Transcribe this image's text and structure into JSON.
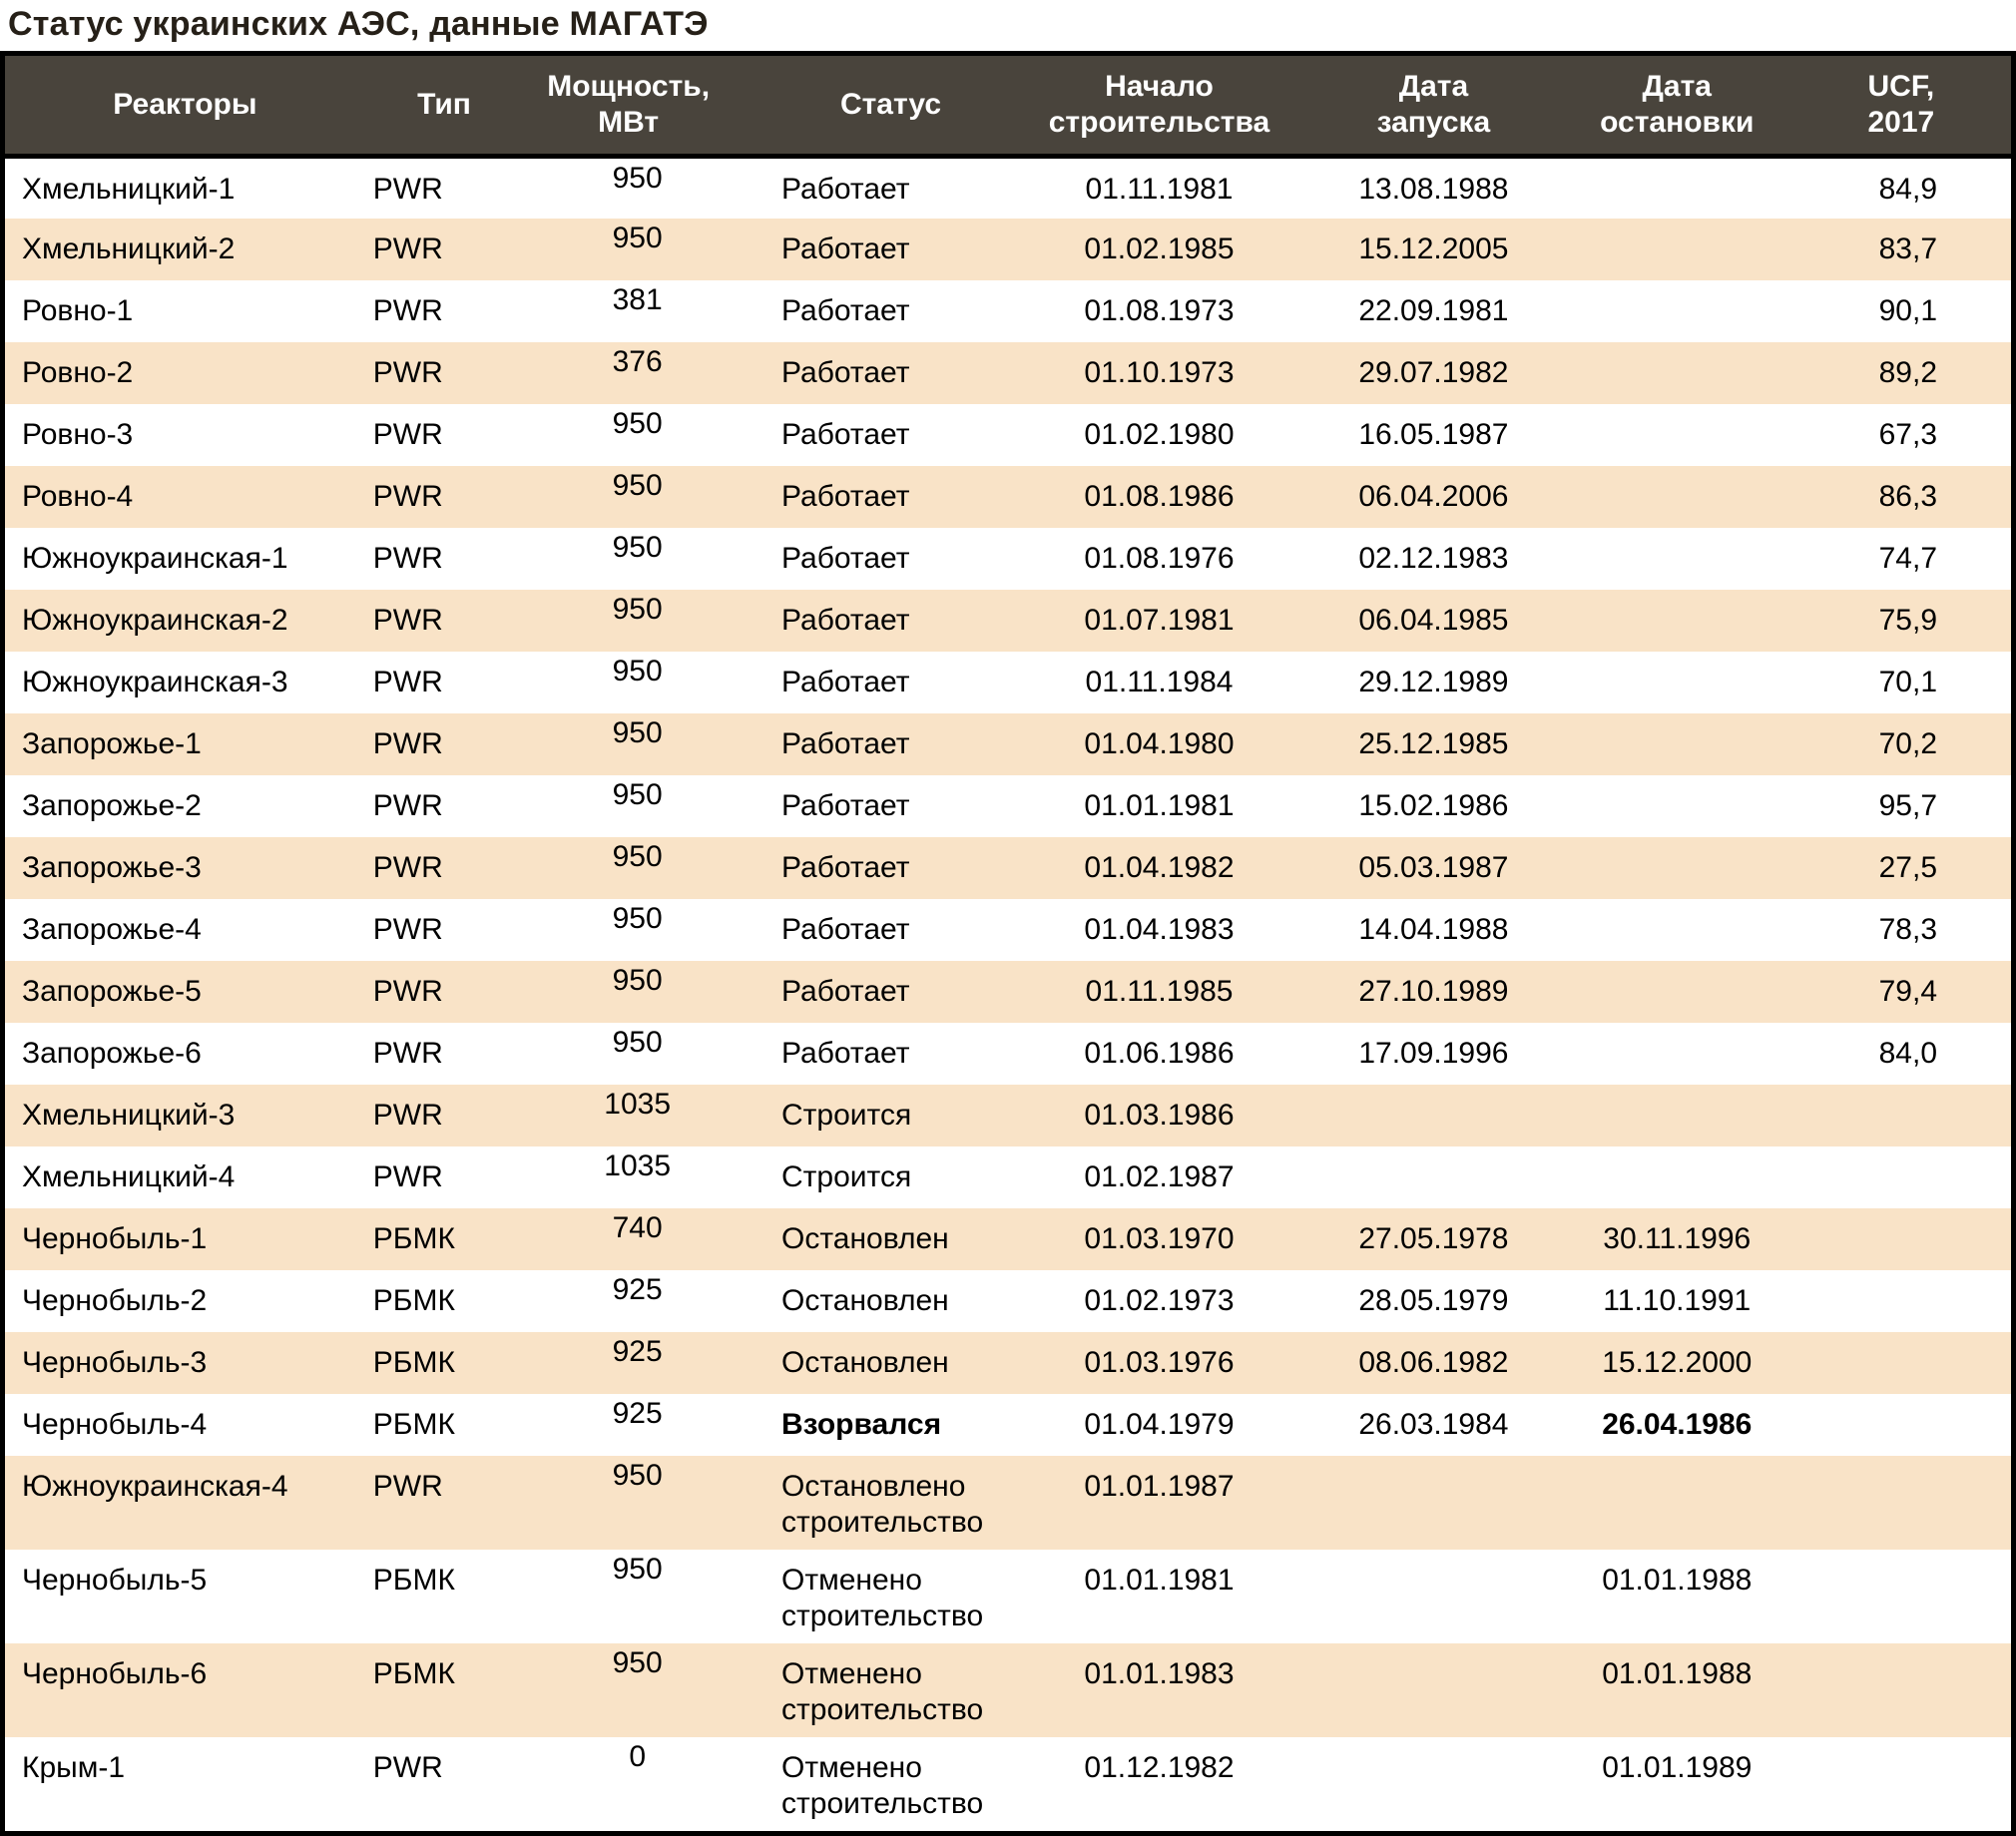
{
  "page_title": "Статус украинских АЭС, данные МАГАТЭ",
  "colors": {
    "header_bg": "#49443c",
    "header_text": "#ffffff",
    "row_bg": "#ffffff",
    "row_alt_bg": "#f9e3c7",
    "border": "#000000",
    "text": "#000000"
  },
  "table": {
    "column_keys": [
      "name",
      "type",
      "power",
      "status",
      "start",
      "launch",
      "stop",
      "ucf"
    ],
    "headers": [
      {
        "key": "name",
        "label": "Реакторы"
      },
      {
        "key": "type",
        "label": "Тип"
      },
      {
        "key": "power",
        "label": "Мощность,\nМВт"
      },
      {
        "key": "status",
        "label": "Статус"
      },
      {
        "key": "start",
        "label": "Начало\nстроительства"
      },
      {
        "key": "launch",
        "label": "Дата\nзапуска"
      },
      {
        "key": "stop",
        "label": "Дата\nостановки"
      },
      {
        "key": "ucf",
        "label": "UCF,\n2017"
      }
    ],
    "rows": [
      {
        "name": "Хмельницкий-1",
        "type": "PWR",
        "power": "950",
        "status": "Работает",
        "start": "01.11.1981",
        "launch": "13.08.1988",
        "stop": "",
        "ucf": "84,9",
        "bold": []
      },
      {
        "name": "Хмельницкий-2",
        "type": "PWR",
        "power": "950",
        "status": "Работает",
        "start": "01.02.1985",
        "launch": "15.12.2005",
        "stop": "",
        "ucf": "83,7",
        "bold": []
      },
      {
        "name": "Ровно-1",
        "type": "PWR",
        "power": "381",
        "status": "Работает",
        "start": "01.08.1973",
        "launch": "22.09.1981",
        "stop": "",
        "ucf": "90,1",
        "bold": []
      },
      {
        "name": "Ровно-2",
        "type": "PWR",
        "power": "376",
        "status": "Работает",
        "start": "01.10.1973",
        "launch": "29.07.1982",
        "stop": "",
        "ucf": "89,2",
        "bold": []
      },
      {
        "name": "Ровно-3",
        "type": "PWR",
        "power": "950",
        "status": "Работает",
        "start": "01.02.1980",
        "launch": "16.05.1987",
        "stop": "",
        "ucf": "67,3",
        "bold": []
      },
      {
        "name": "Ровно-4",
        "type": "PWR",
        "power": "950",
        "status": "Работает",
        "start": "01.08.1986",
        "launch": "06.04.2006",
        "stop": "",
        "ucf": "86,3",
        "bold": []
      },
      {
        "name": "Южноукраинская-1",
        "type": "PWR",
        "power": "950",
        "status": "Работает",
        "start": "01.08.1976",
        "launch": "02.12.1983",
        "stop": "",
        "ucf": "74,7",
        "bold": []
      },
      {
        "name": "Южноукраинская-2",
        "type": "PWR",
        "power": "950",
        "status": "Работает",
        "start": "01.07.1981",
        "launch": "06.04.1985",
        "stop": "",
        "ucf": "75,9",
        "bold": []
      },
      {
        "name": "Южноукраинская-3",
        "type": "PWR",
        "power": "950",
        "status": "Работает",
        "start": "01.11.1984",
        "launch": "29.12.1989",
        "stop": "",
        "ucf": "70,1",
        "bold": []
      },
      {
        "name": "Запорожье-1",
        "type": "PWR",
        "power": "950",
        "status": "Работает",
        "start": "01.04.1980",
        "launch": "25.12.1985",
        "stop": "",
        "ucf": "70,2",
        "bold": []
      },
      {
        "name": "Запорожье-2",
        "type": "PWR",
        "power": "950",
        "status": "Работает",
        "start": "01.01.1981",
        "launch": "15.02.1986",
        "stop": "",
        "ucf": "95,7",
        "bold": []
      },
      {
        "name": "Запорожье-3",
        "type": "PWR",
        "power": "950",
        "status": "Работает",
        "start": "01.04.1982",
        "launch": "05.03.1987",
        "stop": "",
        "ucf": "27,5",
        "bold": []
      },
      {
        "name": "Запорожье-4",
        "type": "PWR",
        "power": "950",
        "status": "Работает",
        "start": "01.04.1983",
        "launch": "14.04.1988",
        "stop": "",
        "ucf": "78,3",
        "bold": []
      },
      {
        "name": "Запорожье-5",
        "type": "PWR",
        "power": "950",
        "status": "Работает",
        "start": "01.11.1985",
        "launch": "27.10.1989",
        "stop": "",
        "ucf": "79,4",
        "bold": []
      },
      {
        "name": "Запорожье-6",
        "type": "PWR",
        "power": "950",
        "status": "Работает",
        "start": "01.06.1986",
        "launch": "17.09.1996",
        "stop": "",
        "ucf": "84,0",
        "bold": []
      },
      {
        "name": "Хмельницкий-3",
        "type": "PWR",
        "power": "1035",
        "status": "Строится",
        "start": "01.03.1986",
        "launch": "",
        "stop": "",
        "ucf": "",
        "bold": []
      },
      {
        "name": "Хмельницкий-4",
        "type": "PWR",
        "power": "1035",
        "status": "Строится",
        "start": "01.02.1987",
        "launch": "",
        "stop": "",
        "ucf": "",
        "bold": []
      },
      {
        "name": "Чернобыль-1",
        "type": "РБМК",
        "power": "740",
        "status": "Остановлен",
        "start": "01.03.1970",
        "launch": "27.05.1978",
        "stop": "30.11.1996",
        "ucf": "",
        "bold": []
      },
      {
        "name": "Чернобыль-2",
        "type": "РБМК",
        "power": "925",
        "status": "Остановлен",
        "start": "01.02.1973",
        "launch": "28.05.1979",
        "stop": "11.10.1991",
        "ucf": "",
        "bold": []
      },
      {
        "name": "Чернобыль-3",
        "type": "РБМК",
        "power": "925",
        "status": "Остановлен",
        "start": "01.03.1976",
        "launch": "08.06.1982",
        "stop": "15.12.2000",
        "ucf": "",
        "bold": []
      },
      {
        "name": "Чернобыль-4",
        "type": "РБМК",
        "power": "925",
        "status": "Взорвался",
        "start": "01.04.1979",
        "launch": "26.03.1984",
        "stop": "26.04.1986",
        "ucf": "",
        "bold": [
          "status",
          "stop"
        ]
      },
      {
        "name": "Южноукраинская-4",
        "type": "PWR",
        "power": "950",
        "status": "Остановлено\nстроительство",
        "start": "01.01.1987",
        "launch": "",
        "stop": "",
        "ucf": "",
        "bold": []
      },
      {
        "name": "Чернобыль-5",
        "type": "РБМК",
        "power": "950",
        "status": "Отменено\nстроительство",
        "start": "01.01.1981",
        "launch": "",
        "stop": "01.01.1988",
        "ucf": "",
        "bold": []
      },
      {
        "name": "Чернобыль-6",
        "type": "РБМК",
        "power": "950",
        "status": "Отменено\nстроительство",
        "start": "01.01.1983",
        "launch": "",
        "stop": "01.01.1988",
        "ucf": "",
        "bold": []
      },
      {
        "name": "Крым-1",
        "type": "PWR",
        "power": "0",
        "status": "Отменено\nстроительство",
        "start": "01.12.1982",
        "launch": "",
        "stop": "01.01.1989",
        "ucf": "",
        "bold": []
      }
    ]
  },
  "chart_data": {
    "type": "table",
    "title": "Статус украинских АЭС, данные МАГАТЭ",
    "columns": [
      "Реакторы",
      "Тип",
      "Мощность, МВт",
      "Статус",
      "Начало строительства",
      "Дата запуска",
      "Дата остановки",
      "UCF, 2017"
    ],
    "rows": [
      [
        "Хмельницкий-1",
        "PWR",
        950,
        "Работает",
        "01.11.1981",
        "13.08.1988",
        null,
        84.9
      ],
      [
        "Хмельницкий-2",
        "PWR",
        950,
        "Работает",
        "01.02.1985",
        "15.12.2005",
        null,
        83.7
      ],
      [
        "Ровно-1",
        "PWR",
        381,
        "Работает",
        "01.08.1973",
        "22.09.1981",
        null,
        90.1
      ],
      [
        "Ровно-2",
        "PWR",
        376,
        "Работает",
        "01.10.1973",
        "29.07.1982",
        null,
        89.2
      ],
      [
        "Ровно-3",
        "PWR",
        950,
        "Работает",
        "01.02.1980",
        "16.05.1987",
        null,
        67.3
      ],
      [
        "Ровно-4",
        "PWR",
        950,
        "Работает",
        "01.08.1986",
        "06.04.2006",
        null,
        86.3
      ],
      [
        "Южноукраинская-1",
        "PWR",
        950,
        "Работает",
        "01.08.1976",
        "02.12.1983",
        null,
        74.7
      ],
      [
        "Южноукраинская-2",
        "PWR",
        950,
        "Работает",
        "01.07.1981",
        "06.04.1985",
        null,
        75.9
      ],
      [
        "Южноукраинская-3",
        "PWR",
        950,
        "Работает",
        "01.11.1984",
        "29.12.1989",
        null,
        70.1
      ],
      [
        "Запорожье-1",
        "PWR",
        950,
        "Работает",
        "01.04.1980",
        "25.12.1985",
        null,
        70.2
      ],
      [
        "Запорожье-2",
        "PWR",
        950,
        "Работает",
        "01.01.1981",
        "15.02.1986",
        null,
        95.7
      ],
      [
        "Запорожье-3",
        "PWR",
        950,
        "Работает",
        "01.04.1982",
        "05.03.1987",
        null,
        27.5
      ],
      [
        "Запорожье-4",
        "PWR",
        950,
        "Работает",
        "01.04.1983",
        "14.04.1988",
        null,
        78.3
      ],
      [
        "Запорожье-5",
        "PWR",
        950,
        "Работает",
        "01.11.1985",
        "27.10.1989",
        null,
        79.4
      ],
      [
        "Запорожье-6",
        "PWR",
        950,
        "Работает",
        "01.06.1986",
        "17.09.1996",
        null,
        84.0
      ],
      [
        "Хмельницкий-3",
        "PWR",
        1035,
        "Строится",
        "01.03.1986",
        null,
        null,
        null
      ],
      [
        "Хмельницкий-4",
        "PWR",
        1035,
        "Строится",
        "01.02.1987",
        null,
        null,
        null
      ],
      [
        "Чернобыль-1",
        "РБМК",
        740,
        "Остановлен",
        "01.03.1970",
        "27.05.1978",
        "30.11.1996",
        null
      ],
      [
        "Чернобыль-2",
        "РБМК",
        925,
        "Остановлен",
        "01.02.1973",
        "28.05.1979",
        "11.10.1991",
        null
      ],
      [
        "Чернобыль-3",
        "РБМК",
        925,
        "Остановлен",
        "01.03.1976",
        "08.06.1982",
        "15.12.2000",
        null
      ],
      [
        "Чернобыль-4",
        "РБМК",
        925,
        "Взорвался",
        "01.04.1979",
        "26.03.1984",
        "26.04.1986",
        null
      ],
      [
        "Южноукраинская-4",
        "PWR",
        950,
        "Остановлено строительство",
        "01.01.1987",
        null,
        null,
        null
      ],
      [
        "Чернобыль-5",
        "РБМК",
        950,
        "Отменено строительство",
        "01.01.1981",
        null,
        "01.01.1988",
        null
      ],
      [
        "Чернобыль-6",
        "РБМК",
        950,
        "Отменено строительство",
        "01.01.1983",
        null,
        "01.01.1988",
        null
      ],
      [
        "Крым-1",
        "PWR",
        0,
        "Отменено строительство",
        "01.12.1982",
        null,
        "01.01.1989",
        null
      ]
    ]
  }
}
